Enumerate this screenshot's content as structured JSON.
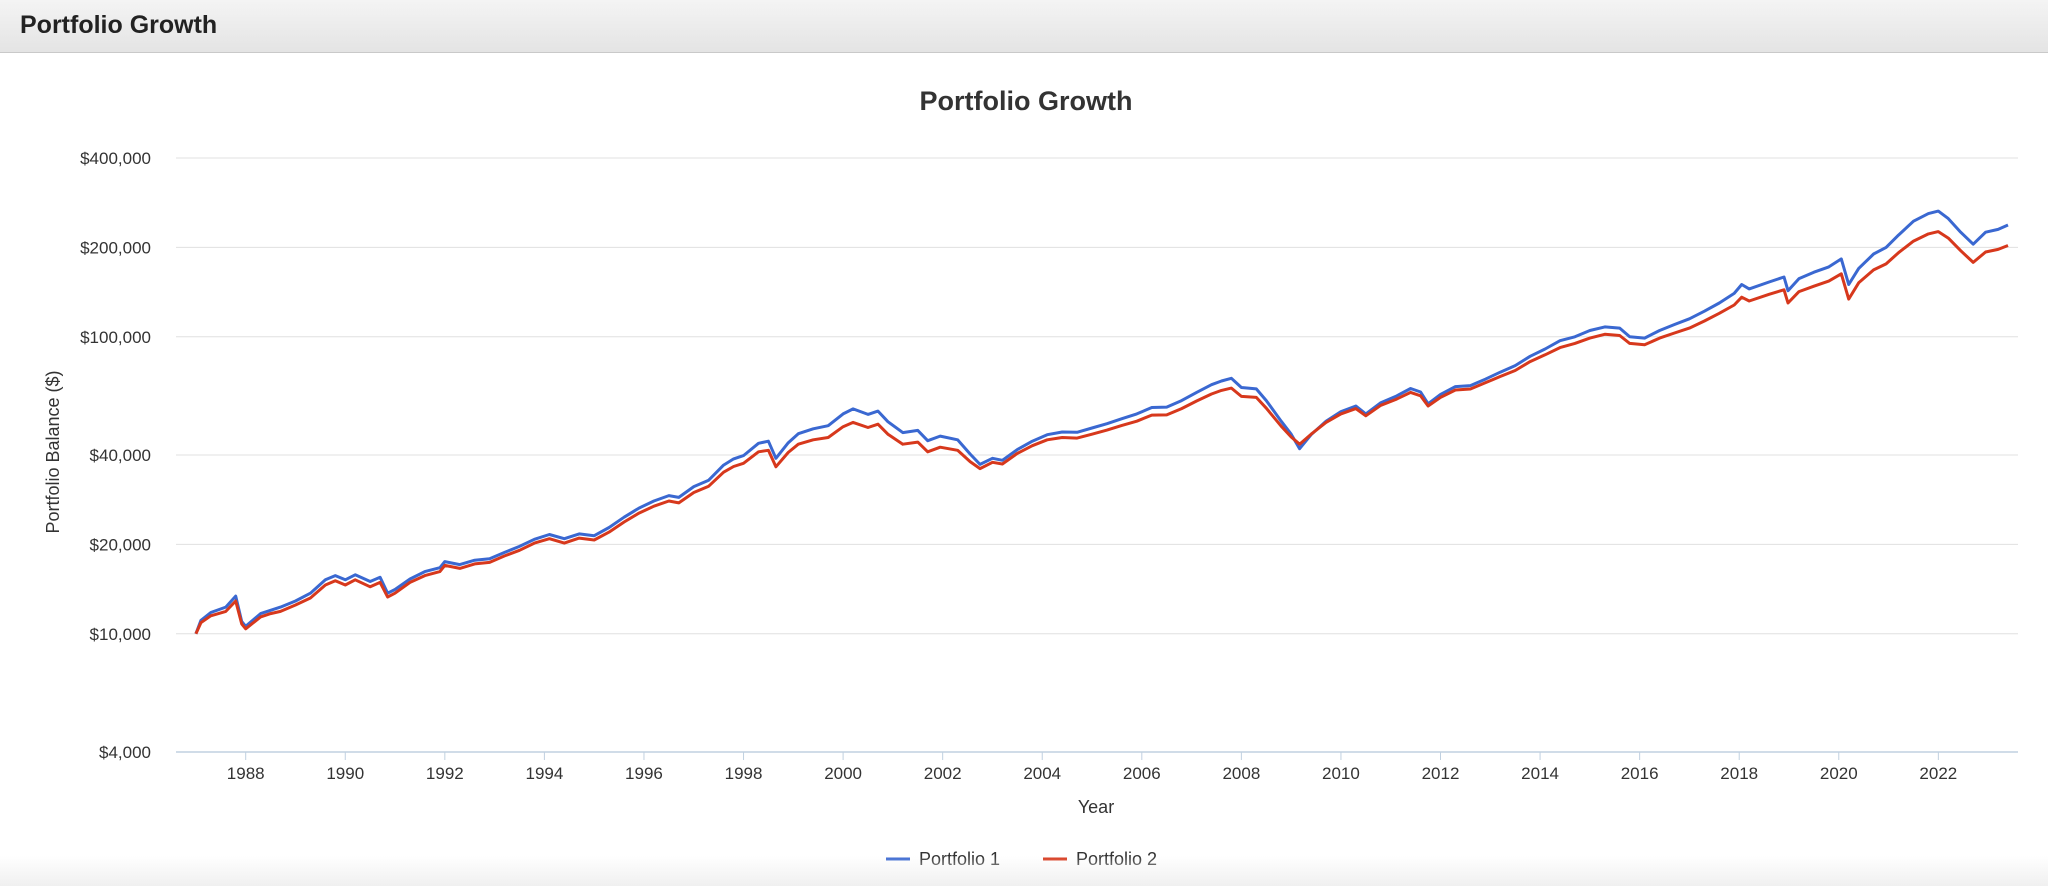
{
  "panel": {
    "title": "Portfolio Growth"
  },
  "chart_data": {
    "type": "line",
    "title": "Portfolio Growth",
    "xlabel": "Year",
    "ylabel": "Portfolio Balance ($)",
    "yscale": "log",
    "ylim": [
      4000,
      400000
    ],
    "xlim": [
      1986.6,
      2023.6
    ],
    "xticks": [
      1988,
      1990,
      1992,
      1994,
      1996,
      1998,
      2000,
      2002,
      2004,
      2006,
      2008,
      2010,
      2012,
      2014,
      2016,
      2018,
      2020,
      2022
    ],
    "ytick_values": [
      4000,
      10000,
      20000,
      40000,
      100000,
      200000,
      400000
    ],
    "ytick_labels": [
      "$4,000",
      "$10,000",
      "$20,000",
      "$40,000",
      "$100,000",
      "$200,000",
      "$400,000"
    ],
    "legend_position": "bottom-center",
    "series": [
      {
        "name": "Portfolio 1",
        "color": "#3a68d1",
        "points": [
          [
            1987.0,
            10000
          ],
          [
            1987.1,
            11100
          ],
          [
            1987.3,
            11800
          ],
          [
            1987.6,
            12300
          ],
          [
            1987.8,
            13400
          ],
          [
            1987.92,
            11000
          ],
          [
            1988.0,
            10600
          ],
          [
            1988.3,
            11700
          ],
          [
            1988.5,
            12000
          ],
          [
            1988.7,
            12300
          ],
          [
            1989.0,
            12900
          ],
          [
            1989.3,
            13700
          ],
          [
            1989.6,
            15200
          ],
          [
            1989.8,
            15700
          ],
          [
            1990.0,
            15200
          ],
          [
            1990.2,
            15800
          ],
          [
            1990.5,
            15000
          ],
          [
            1990.7,
            15500
          ],
          [
            1990.85,
            13700
          ],
          [
            1991.0,
            14100
          ],
          [
            1991.3,
            15300
          ],
          [
            1991.6,
            16200
          ],
          [
            1991.9,
            16700
          ],
          [
            1992.0,
            17500
          ],
          [
            1992.3,
            17100
          ],
          [
            1992.6,
            17700
          ],
          [
            1992.9,
            17900
          ],
          [
            1993.2,
            18800
          ],
          [
            1993.5,
            19700
          ],
          [
            1993.8,
            20800
          ],
          [
            1994.1,
            21600
          ],
          [
            1994.4,
            20900
          ],
          [
            1994.7,
            21700
          ],
          [
            1995.0,
            21400
          ],
          [
            1995.3,
            22800
          ],
          [
            1995.6,
            24700
          ],
          [
            1995.9,
            26500
          ],
          [
            1996.2,
            28000
          ],
          [
            1996.5,
            29200
          ],
          [
            1996.7,
            28800
          ],
          [
            1997.0,
            31300
          ],
          [
            1997.3,
            32900
          ],
          [
            1997.6,
            37000
          ],
          [
            1997.8,
            38800
          ],
          [
            1998.0,
            39800
          ],
          [
            1998.3,
            43800
          ],
          [
            1998.5,
            44500
          ],
          [
            1998.65,
            39000
          ],
          [
            1998.9,
            44000
          ],
          [
            1999.1,
            47200
          ],
          [
            1999.4,
            49000
          ],
          [
            1999.7,
            50200
          ],
          [
            2000.0,
            55000
          ],
          [
            2000.2,
            57200
          ],
          [
            2000.5,
            54800
          ],
          [
            2000.7,
            56200
          ],
          [
            2000.9,
            51800
          ],
          [
            2001.2,
            47600
          ],
          [
            2001.5,
            48400
          ],
          [
            2001.7,
            44700
          ],
          [
            2001.95,
            46300
          ],
          [
            2002.3,
            45000
          ],
          [
            2002.55,
            40300
          ],
          [
            2002.75,
            37200
          ],
          [
            2003.0,
            39000
          ],
          [
            2003.2,
            38400
          ],
          [
            2003.5,
            41700
          ],
          [
            2003.8,
            44500
          ],
          [
            2004.1,
            46800
          ],
          [
            2004.4,
            47800
          ],
          [
            2004.7,
            47700
          ],
          [
            2005.0,
            49300
          ],
          [
            2005.3,
            51000
          ],
          [
            2005.6,
            53000
          ],
          [
            2005.9,
            55000
          ],
          [
            2006.2,
            57800
          ],
          [
            2006.5,
            58000
          ],
          [
            2006.8,
            61000
          ],
          [
            2007.1,
            65000
          ],
          [
            2007.4,
            69000
          ],
          [
            2007.6,
            71000
          ],
          [
            2007.8,
            72500
          ],
          [
            2008.0,
            67500
          ],
          [
            2008.3,
            66800
          ],
          [
            2008.5,
            61000
          ],
          [
            2008.8,
            52000
          ],
          [
            2009.0,
            47000
          ],
          [
            2009.17,
            42000
          ],
          [
            2009.4,
            46800
          ],
          [
            2009.7,
            52000
          ],
          [
            2010.0,
            56000
          ],
          [
            2010.3,
            58500
          ],
          [
            2010.5,
            55000
          ],
          [
            2010.8,
            60000
          ],
          [
            2011.1,
            63000
          ],
          [
            2011.4,
            67000
          ],
          [
            2011.6,
            65200
          ],
          [
            2011.75,
            59500
          ],
          [
            2012.0,
            64000
          ],
          [
            2012.3,
            68000
          ],
          [
            2012.6,
            68500
          ],
          [
            2012.9,
            72000
          ],
          [
            2013.2,
            76000
          ],
          [
            2013.5,
            80000
          ],
          [
            2013.8,
            86000
          ],
          [
            2014.1,
            91000
          ],
          [
            2014.4,
            97000
          ],
          [
            2014.7,
            100000
          ],
          [
            2015.0,
            105000
          ],
          [
            2015.3,
            108000
          ],
          [
            2015.6,
            107000
          ],
          [
            2015.8,
            100000
          ],
          [
            2016.1,
            99000
          ],
          [
            2016.4,
            105000
          ],
          [
            2016.7,
            110000
          ],
          [
            2017.0,
            115000
          ],
          [
            2017.3,
            122000
          ],
          [
            2017.6,
            130000
          ],
          [
            2017.9,
            140000
          ],
          [
            2018.05,
            150000
          ],
          [
            2018.2,
            145000
          ],
          [
            2018.6,
            153000
          ],
          [
            2018.9,
            159000
          ],
          [
            2018.98,
            143000
          ],
          [
            2019.2,
            157000
          ],
          [
            2019.5,
            165000
          ],
          [
            2019.8,
            172000
          ],
          [
            2020.05,
            183000
          ],
          [
            2020.2,
            150000
          ],
          [
            2020.4,
            170000
          ],
          [
            2020.7,
            190000
          ],
          [
            2020.95,
            200000
          ],
          [
            2021.2,
            220000
          ],
          [
            2021.5,
            245000
          ],
          [
            2021.8,
            260000
          ],
          [
            2022.0,
            265000
          ],
          [
            2022.2,
            250000
          ],
          [
            2022.45,
            225000
          ],
          [
            2022.7,
            205000
          ],
          [
            2022.95,
            225000
          ],
          [
            2023.2,
            230000
          ],
          [
            2023.4,
            238000
          ]
        ]
      },
      {
        "name": "Portfolio 2",
        "color": "#d7381c",
        "points": [
          [
            1987.0,
            10000
          ],
          [
            1987.1,
            10900
          ],
          [
            1987.3,
            11500
          ],
          [
            1987.6,
            11900
          ],
          [
            1987.8,
            12900
          ],
          [
            1987.92,
            10800
          ],
          [
            1988.0,
            10400
          ],
          [
            1988.3,
            11400
          ],
          [
            1988.5,
            11700
          ],
          [
            1988.7,
            11900
          ],
          [
            1989.0,
            12500
          ],
          [
            1989.3,
            13200
          ],
          [
            1989.6,
            14600
          ],
          [
            1989.8,
            15100
          ],
          [
            1990.0,
            14600
          ],
          [
            1990.2,
            15200
          ],
          [
            1990.5,
            14400
          ],
          [
            1990.7,
            14900
          ],
          [
            1990.85,
            13300
          ],
          [
            1991.0,
            13700
          ],
          [
            1991.3,
            14900
          ],
          [
            1991.6,
            15700
          ],
          [
            1991.9,
            16200
          ],
          [
            1992.0,
            17000
          ],
          [
            1992.3,
            16600
          ],
          [
            1992.6,
            17200
          ],
          [
            1992.9,
            17400
          ],
          [
            1993.2,
            18300
          ],
          [
            1993.5,
            19100
          ],
          [
            1993.8,
            20200
          ],
          [
            1994.1,
            20900
          ],
          [
            1994.4,
            20200
          ],
          [
            1994.7,
            21000
          ],
          [
            1995.0,
            20700
          ],
          [
            1995.3,
            22000
          ],
          [
            1995.6,
            23800
          ],
          [
            1995.9,
            25500
          ],
          [
            1996.2,
            26900
          ],
          [
            1996.5,
            28000
          ],
          [
            1996.7,
            27600
          ],
          [
            1997.0,
            29900
          ],
          [
            1997.3,
            31400
          ],
          [
            1997.6,
            35000
          ],
          [
            1997.8,
            36600
          ],
          [
            1998.0,
            37500
          ],
          [
            1998.3,
            41000
          ],
          [
            1998.5,
            41500
          ],
          [
            1998.65,
            36500
          ],
          [
            1998.9,
            40800
          ],
          [
            1999.1,
            43500
          ],
          [
            1999.4,
            45000
          ],
          [
            1999.7,
            45800
          ],
          [
            2000.0,
            49800
          ],
          [
            2000.2,
            51500
          ],
          [
            2000.5,
            49500
          ],
          [
            2000.7,
            50800
          ],
          [
            2000.9,
            47000
          ],
          [
            2001.2,
            43500
          ],
          [
            2001.5,
            44200
          ],
          [
            2001.7,
            41000
          ],
          [
            2001.95,
            42500
          ],
          [
            2002.3,
            41500
          ],
          [
            2002.55,
            38000
          ],
          [
            2002.75,
            36000
          ],
          [
            2003.0,
            37800
          ],
          [
            2003.2,
            37300
          ],
          [
            2003.5,
            40500
          ],
          [
            2003.8,
            43000
          ],
          [
            2004.1,
            45000
          ],
          [
            2004.4,
            45800
          ],
          [
            2004.7,
            45600
          ],
          [
            2005.0,
            47000
          ],
          [
            2005.3,
            48500
          ],
          [
            2005.6,
            50300
          ],
          [
            2005.9,
            52000
          ],
          [
            2006.2,
            54500
          ],
          [
            2006.5,
            54600
          ],
          [
            2006.8,
            57300
          ],
          [
            2007.1,
            60800
          ],
          [
            2007.4,
            64200
          ],
          [
            2007.6,
            66000
          ],
          [
            2007.8,
            67200
          ],
          [
            2008.0,
            63000
          ],
          [
            2008.3,
            62500
          ],
          [
            2008.5,
            57500
          ],
          [
            2008.8,
            50000
          ],
          [
            2009.0,
            46000
          ],
          [
            2009.17,
            43500
          ],
          [
            2009.4,
            47000
          ],
          [
            2009.7,
            51500
          ],
          [
            2010.0,
            55000
          ],
          [
            2010.3,
            57300
          ],
          [
            2010.5,
            54200
          ],
          [
            2010.8,
            58800
          ],
          [
            2011.1,
            61500
          ],
          [
            2011.4,
            65000
          ],
          [
            2011.6,
            63300
          ],
          [
            2011.75,
            58500
          ],
          [
            2012.0,
            62500
          ],
          [
            2012.3,
            66200
          ],
          [
            2012.6,
            66700
          ],
          [
            2012.9,
            70000
          ],
          [
            2013.2,
            73500
          ],
          [
            2013.5,
            77000
          ],
          [
            2013.8,
            82500
          ],
          [
            2014.1,
            87000
          ],
          [
            2014.4,
            92000
          ],
          [
            2014.7,
            95000
          ],
          [
            2015.0,
            99000
          ],
          [
            2015.3,
            102000
          ],
          [
            2015.6,
            101000
          ],
          [
            2015.8,
            95000
          ],
          [
            2016.1,
            94000
          ],
          [
            2016.4,
            99000
          ],
          [
            2016.7,
            103000
          ],
          [
            2017.0,
            107000
          ],
          [
            2017.3,
            113000
          ],
          [
            2017.6,
            120000
          ],
          [
            2017.9,
            128000
          ],
          [
            2018.05,
            136000
          ],
          [
            2018.2,
            132000
          ],
          [
            2018.6,
            139000
          ],
          [
            2018.9,
            144000
          ],
          [
            2018.98,
            130000
          ],
          [
            2019.2,
            142000
          ],
          [
            2019.5,
            148000
          ],
          [
            2019.8,
            154000
          ],
          [
            2020.05,
            163000
          ],
          [
            2020.2,
            134000
          ],
          [
            2020.4,
            152000
          ],
          [
            2020.7,
            168000
          ],
          [
            2020.95,
            176000
          ],
          [
            2021.2,
            192000
          ],
          [
            2021.5,
            210000
          ],
          [
            2021.8,
            222000
          ],
          [
            2022.0,
            226000
          ],
          [
            2022.2,
            215000
          ],
          [
            2022.45,
            195000
          ],
          [
            2022.7,
            178000
          ],
          [
            2022.95,
            193000
          ],
          [
            2023.2,
            197000
          ],
          [
            2023.4,
            203000
          ]
        ]
      }
    ]
  }
}
